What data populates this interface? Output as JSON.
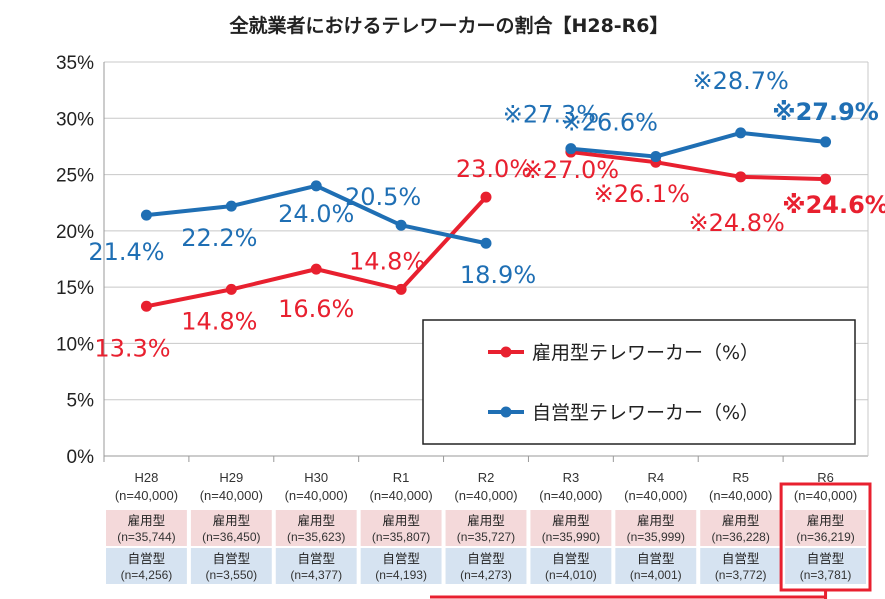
{
  "chart_data": {
    "type": "line",
    "title": "全就業者におけるテレワーカーの割合【H28-R6】",
    "categories": [
      "H28",
      "H29",
      "H30",
      "R1",
      "R2",
      "R3",
      "R4",
      "R5",
      "R6"
    ],
    "category_n": [
      "(n=40,000)",
      "(n=40,000)",
      "(n=40,000)",
      "(n=40,000)",
      "(n=40,000)",
      "(n=40,000)",
      "(n=40,000)",
      "(n=40,000)",
      "(n=40,000)"
    ],
    "ylim": [
      0,
      35
    ],
    "yticks": [
      0,
      5,
      10,
      15,
      20,
      25,
      30,
      35
    ],
    "ytick_labels": [
      "0%",
      "5%",
      "10%",
      "15%",
      "20%",
      "25%",
      "30%",
      "35%"
    ],
    "grid": true,
    "legend_position": "lower-right",
    "series": [
      {
        "name": "雇用型テレワーカー（%）",
        "color": "#e8202f",
        "values": [
          13.3,
          14.8,
          16.6,
          14.8,
          23.0,
          27.0,
          26.1,
          24.8,
          24.6
        ],
        "labels": [
          "13.3%",
          "14.8%",
          "16.6%",
          "14.8%",
          "23.0%",
          "※27.0%",
          "※26.1%",
          "※24.8%",
          "※24.6%"
        ]
      },
      {
        "name": "自営型テレワーカー（%）",
        "color": "#1f6fb4",
        "values": [
          21.4,
          22.2,
          24.0,
          20.5,
          18.9,
          27.3,
          26.6,
          28.7,
          27.9
        ],
        "labels": [
          "21.4%",
          "22.2%",
          "24.0%",
          "20.5%",
          "18.9%",
          "※27.3%",
          "※26.6%",
          "※28.7%",
          "※27.9%"
        ]
      }
    ],
    "sample_table": {
      "rows": [
        {
          "label": "雇用型",
          "values": [
            "(n=35,744)",
            "(n=36,450)",
            "(n=35,623)",
            "(n=35,807)",
            "(n=35,727)",
            "(n=35,990)",
            "(n=35,999)",
            "(n=36,228)",
            "(n=36,219)"
          ]
        },
        {
          "label": "自営型",
          "values": [
            "(n=4,256)",
            "(n=3,550)",
            "(n=4,377)",
            "(n=4,193)",
            "(n=4,273)",
            "(n=4,010)",
            "(n=4,001)",
            "(n=3,772)",
            "(n=3,781)"
          ]
        }
      ]
    },
    "highlight": {
      "category": "R6",
      "color": "#e8202f"
    }
  }
}
